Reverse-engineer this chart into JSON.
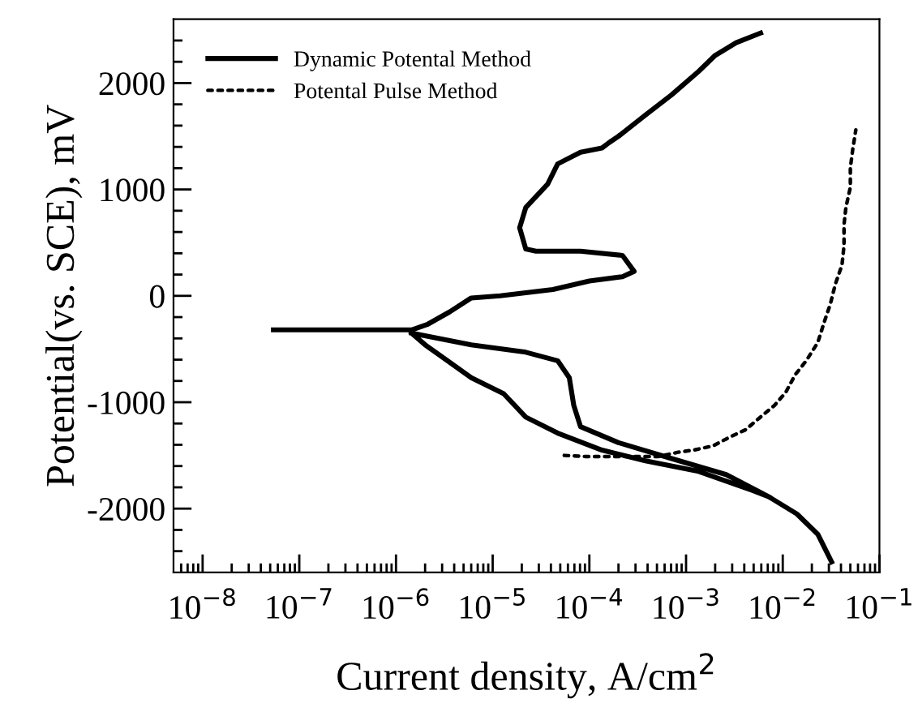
{
  "chart_data": {
    "type": "line",
    "xlabel": "Current density, A/cm$^{2}$",
    "ylabel": "Potential(vs. SCE), mV",
    "log": "x",
    "xlim": [
      5e-09,
      0.1
    ],
    "ylim": [
      -2600,
      2600
    ],
    "xticks": [
      {
        "value": 1e-08,
        "label": "10$^{−8}$"
      },
      {
        "value": 1e-07,
        "label": "10$^{−7}$"
      },
      {
        "value": 1e-06,
        "label": "10$^{−6}$"
      },
      {
        "value": 1e-05,
        "label": "10$^{−5}$"
      },
      {
        "value": 0.0001,
        "label": "10$^{−4}$"
      },
      {
        "value": 0.001,
        "label": "10$^{−3}$"
      },
      {
        "value": 0.01,
        "label": "10$^{−2}$"
      },
      {
        "value": 0.1,
        "label": "10$^{−1}$"
      },
      {
        "value": 6e-09,
        "label": null
      },
      {
        "value": 7e-09,
        "label": null
      },
      {
        "value": 8e-09,
        "label": null
      },
      {
        "value": 9e-09,
        "label": null
      },
      {
        "value": 2e-08,
        "label": null
      },
      {
        "value": 3e-08,
        "label": null
      },
      {
        "value": 4e-08,
        "label": null
      },
      {
        "value": 5e-08,
        "label": null
      },
      {
        "value": 6e-08,
        "label": null
      },
      {
        "value": 7e-08,
        "label": null
      },
      {
        "value": 8e-08,
        "label": null
      },
      {
        "value": 9e-08,
        "label": null
      },
      {
        "value": 2e-07,
        "label": null
      },
      {
        "value": 3e-07,
        "label": null
      },
      {
        "value": 4e-07,
        "label": null
      },
      {
        "value": 5e-07,
        "label": null
      },
      {
        "value": 6e-07,
        "label": null
      },
      {
        "value": 7e-07,
        "label": null
      },
      {
        "value": 8e-07,
        "label": null
      },
      {
        "value": 9e-07,
        "label": null
      },
      {
        "value": 2e-06,
        "label": null
      },
      {
        "value": 3e-06,
        "label": null
      },
      {
        "value": 4e-06,
        "label": null
      },
      {
        "value": 5e-06,
        "label": null
      },
      {
        "value": 6e-06,
        "label": null
      },
      {
        "value": 7e-06,
        "label": null
      },
      {
        "value": 8e-06,
        "label": null
      },
      {
        "value": 9e-06,
        "label": null
      },
      {
        "value": 2e-05,
        "label": null
      },
      {
        "value": 3e-05,
        "label": null
      },
      {
        "value": 4e-05,
        "label": null
      },
      {
        "value": 5e-05,
        "label": null
      },
      {
        "value": 6e-05,
        "label": null
      },
      {
        "value": 7e-05,
        "label": null
      },
      {
        "value": 8e-05,
        "label": null
      },
      {
        "value": 9e-05,
        "label": null
      },
      {
        "value": 0.0002,
        "label": null
      },
      {
        "value": 0.0003,
        "label": null
      },
      {
        "value": 0.0004,
        "label": null
      },
      {
        "value": 0.0005,
        "label": null
      },
      {
        "value": 0.0006,
        "label": null
      },
      {
        "value": 0.0007,
        "label": null
      },
      {
        "value": 0.0008,
        "label": null
      },
      {
        "value": 0.0009,
        "label": null
      },
      {
        "value": 0.002,
        "label": null
      },
      {
        "value": 0.003,
        "label": null
      },
      {
        "value": 0.004,
        "label": null
      },
      {
        "value": 0.005,
        "label": null
      },
      {
        "value": 0.006,
        "label": null
      },
      {
        "value": 0.007,
        "label": null
      },
      {
        "value": 0.008,
        "label": null
      },
      {
        "value": 0.009,
        "label": null
      },
      {
        "value": 0.02,
        "label": null
      },
      {
        "value": 0.03,
        "label": null
      },
      {
        "value": 0.04,
        "label": null
      },
      {
        "value": 0.05,
        "label": null
      },
      {
        "value": 0.06,
        "label": null
      },
      {
        "value": 0.07,
        "label": null
      },
      {
        "value": 0.08,
        "label": null
      },
      {
        "value": 0.09,
        "label": null
      }
    ],
    "yticks": [
      -2000,
      -1000,
      0,
      1000,
      2000,
      {
        "value": -2400,
        "label": null
      },
      {
        "value": -2200,
        "label": null
      },
      {
        "value": -1800,
        "label": null
      },
      {
        "value": -1600,
        "label": null
      },
      {
        "value": -1400,
        "label": null
      },
      {
        "value": -1200,
        "label": null
      },
      {
        "value": -800,
        "label": null
      },
      {
        "value": -600,
        "label": null
      },
      {
        "value": -400,
        "label": null
      },
      {
        "value": -200,
        "label": null
      },
      {
        "value": 200,
        "label": null
      },
      {
        "value": 400,
        "label": null
      },
      {
        "value": 600,
        "label": null
      },
      {
        "value": 800,
        "label": null
      },
      {
        "value": 1200,
        "label": null
      },
      {
        "value": 1400,
        "label": null
      },
      {
        "value": 1600,
        "label": null
      },
      {
        "value": 1800,
        "label": null
      },
      {
        "value": 2200,
        "label": null
      },
      {
        "value": 2400,
        "label": null
      }
    ],
    "grid": false,
    "legend": "top left",
    "series": [
      {
        "name": "Dynamic Potental Method",
        "color": "#000000",
        "line_style": "solid",
        "x": [
          5.4e-08,
          1.45e-06,
          2.1e-06,
          3.6e-06,
          6e-06,
          1.2e-05,
          4.2e-05,
          0.0001,
          0.00022,
          0.00029,
          0.00022,
          8.1e-05,
          2.8e-05,
          2.2e-05,
          1.9e-05,
          2.2e-05,
          3.7e-05,
          4.7e-05,
          8.1e-05,
          0.000135,
          0.00016,
          0.0002,
          0.00038,
          0.00071,
          0.00135,
          0.002,
          0.0033,
          0.0059,
          null,
          1.45e-06,
          6e-06,
          2.2e-05,
          4.7e-05,
          6.2e-05,
          6.9e-05,
          8.1e-05,
          0.0002,
          0.00071,
          0.0026,
          0.0072,
          null,
          1.45e-06,
          2e-06,
          3.4e-06,
          6e-06,
          1.3e-05,
          2.2e-05,
          4.7e-05,
          0.000135,
          0.00038,
          0.00135,
          0.0049,
          0.0072,
          0.014,
          0.023,
          0.032
        ],
        "values": [
          -320,
          -320,
          -270,
          -150,
          -20,
          0,
          60,
          140,
          180,
          230,
          380,
          420,
          420,
          440,
          640,
          830,
          1050,
          1240,
          1350,
          1390,
          1440,
          1500,
          1700,
          1890,
          2110,
          2260,
          2380,
          2470,
          null,
          -350,
          -460,
          -530,
          -610,
          -770,
          -1030,
          -1230,
          -1380,
          -1530,
          -1680,
          -1890,
          null,
          -350,
          -460,
          -610,
          -770,
          -920,
          -1140,
          -1290,
          -1450,
          -1550,
          -1650,
          -1830,
          -1890,
          -2050,
          -2240,
          -2500
        ]
      },
      {
        "name": "Potental Pulse Method",
        "color": "#000000",
        "line_style": "dotted",
        "x": [
          5.5e-05,
          9.1e-05,
          0.000174,
          0.00032,
          0.00052,
          0.00083,
          0.0012,
          0.0019,
          0.0028,
          0.0041,
          0.0057,
          0.0082,
          0.0107,
          0.0135,
          0.0175,
          0.023,
          0.027,
          0.031,
          0.035,
          0.041,
          0.043,
          0.043,
          0.045,
          0.05,
          0.05,
          0.053,
          0.057
        ],
        "values": [
          -1500,
          -1510,
          -1510,
          -1510,
          -1510,
          -1470,
          -1450,
          -1410,
          -1330,
          -1260,
          -1150,
          -1030,
          -910,
          -740,
          -610,
          -440,
          -240,
          -80,
          110,
          290,
          470,
          670,
          830,
          1020,
          1200,
          1380,
          1560
        ]
      }
    ]
  }
}
